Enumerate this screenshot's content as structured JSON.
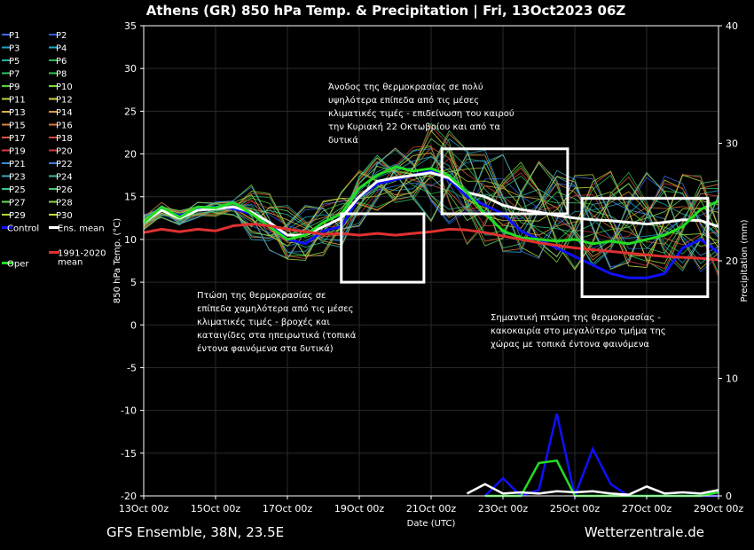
{
  "chart_data": {
    "type": "line",
    "title": "Athens  (GR)  850 hPa Temp. & Precipitation | Fri, 13Oct2023 06Z",
    "xlabel": "Date (UTC)",
    "ylabel": "850 hPa Temp. (°C)",
    "y2label": "Precipitation (mm)",
    "x_ticks": [
      "13Oct 00z",
      "15Oct 00z",
      "17Oct 00z",
      "19Oct 00z",
      "21Oct 00z",
      "23Oct 00z",
      "25Oct 00z",
      "27Oct 00z",
      "29Oct 00z"
    ],
    "x_range_days": [
      0,
      16
    ],
    "ylim": [
      -20,
      35
    ],
    "y_ticks": [
      35,
      30,
      25,
      20,
      15,
      10,
      5,
      0,
      -5,
      -10,
      -15,
      -20
    ],
    "y2lim": [
      0,
      40
    ],
    "y2_ticks": [
      40,
      30,
      20,
      10,
      0
    ],
    "grid": true,
    "legend": {
      "placement": "left outside",
      "members": [
        "P1",
        "P2",
        "P3",
        "P4",
        "P5",
        "P6",
        "P7",
        "P8",
        "P9",
        "P10",
        "P11",
        "P12",
        "P13",
        "P14",
        "P15",
        "P16",
        "P17",
        "P18",
        "P19",
        "P20",
        "P21",
        "P22",
        "P23",
        "P24",
        "P25",
        "P26",
        "P27",
        "P28",
        "P29",
        "P30"
      ],
      "member_colors": [
        "#3a6ee8",
        "#2d5ae0",
        "#1fa0c8",
        "#1aa8d0",
        "#1fb3a3",
        "#22b84a",
        "#2ec468",
        "#34c24a",
        "#4fd23a",
        "#7ad83a",
        "#b6d43a",
        "#d8d03a",
        "#d8b03a",
        "#d89a3a",
        "#d8843a",
        "#d8703a",
        "#d85a3a",
        "#d8463a",
        "#d83a4a",
        "#c83a3a",
        "#3a8ed8",
        "#3a7ad8",
        "#3aa8b8",
        "#3ab8a0",
        "#3ac88a",
        "#4ac870",
        "#6ad85a",
        "#8ad84a",
        "#a8d83a",
        "#c8d83a"
      ],
      "control": "Control",
      "ens_mean": "Ens. mean",
      "oper": "Oper",
      "climate": "1991-2020\nmean"
    },
    "series": [
      {
        "name": "Control",
        "color": "#1010ff",
        "days": [
          0,
          0.5,
          1,
          1.5,
          2,
          2.5,
          3,
          3.5,
          4,
          4.5,
          5,
          5.5,
          6,
          6.5,
          7,
          7.5,
          8,
          8.5,
          9,
          9.5,
          10,
          10.5,
          11,
          11.5,
          12,
          12.5,
          13,
          13.5,
          14,
          14.5,
          15,
          15.5,
          16
        ],
        "values": [
          12,
          13.5,
          12.8,
          13.5,
          13.8,
          13.6,
          13,
          12,
          10,
          9.5,
          11,
          11.5,
          15,
          16.5,
          17,
          17.5,
          18,
          17,
          15,
          14,
          13,
          11,
          10,
          9,
          8,
          7,
          6,
          5.5,
          5.5,
          6,
          9,
          10,
          8.5
        ]
      },
      {
        "name": "Ens. mean",
        "color": "#ffffff",
        "days": [
          0,
          0.5,
          1,
          1.5,
          2,
          2.5,
          3,
          3.5,
          4,
          4.5,
          5,
          5.5,
          6,
          6.5,
          7,
          7.5,
          8,
          8.5,
          9,
          9.5,
          10,
          10.5,
          11,
          11.5,
          12,
          12.5,
          13,
          13.5,
          14,
          14.5,
          15,
          15.5,
          16
        ],
        "values": [
          12,
          13.4,
          12.5,
          13.4,
          13.6,
          13.8,
          13.2,
          12,
          10.5,
          10.5,
          11.5,
          12.5,
          15,
          16.8,
          17.2,
          17.5,
          17.8,
          17.2,
          15.5,
          15,
          14,
          13.5,
          13.2,
          12.8,
          12.5,
          12.3,
          12.2,
          12,
          11.8,
          12,
          12.3,
          12.2,
          11.5
        ]
      },
      {
        "name": "Oper",
        "color": "#22dd22",
        "days": [
          0,
          0.5,
          1,
          1.5,
          2,
          2.5,
          3,
          3.5,
          4,
          4.5,
          5,
          5.5,
          6,
          6.5,
          7,
          7.5,
          8,
          8.5,
          9,
          9.5,
          10,
          10.5,
          11,
          11.5,
          12,
          12.5,
          13,
          13.5,
          14,
          14.5,
          15,
          15.5,
          16
        ],
        "values": [
          12,
          13.8,
          12.6,
          13.8,
          13.7,
          14.3,
          13,
          11.5,
          10,
          10.5,
          12,
          13,
          16,
          17.5,
          18.5,
          18,
          18.3,
          17.5,
          15.5,
          13,
          11,
          10.2,
          10,
          9.8,
          10,
          9.5,
          9.8,
          9.5,
          10,
          10.5,
          11.5,
          13.5,
          14.5
        ]
      },
      {
        "name": "1991-2020\nmean",
        "color": "#e03030",
        "days": [
          0,
          0.5,
          1,
          1.5,
          2,
          2.5,
          3,
          3.5,
          4,
          4.5,
          5,
          5.5,
          6,
          6.5,
          7,
          7.5,
          8,
          8.5,
          9,
          9.5,
          10,
          10.5,
          11,
          11.5,
          12,
          12.5,
          13,
          13.5,
          14,
          14.5,
          15,
          15.5,
          16
        ],
        "values": [
          10.8,
          11.2,
          10.9,
          11.2,
          11,
          11.6,
          11.8,
          11.6,
          11.2,
          10.9,
          10.6,
          10.7,
          10.5,
          10.7,
          10.5,
          10.7,
          10.9,
          11.2,
          11.1,
          10.8,
          10.4,
          10,
          9.6,
          9.3,
          9,
          8.8,
          8.6,
          8.4,
          8.2,
          8,
          7.9,
          7.8,
          7.6
        ]
      }
    ],
    "precip_series": [
      {
        "name": "Control",
        "color": "#1010ff",
        "days": [
          9.5,
          10,
          10.5,
          11,
          11.5,
          12,
          12.5,
          13,
          13.5,
          14,
          14.5,
          15,
          15.5,
          16
        ],
        "values": [
          0,
          1.5,
          0,
          0.5,
          7,
          0,
          4,
          1,
          0,
          0,
          0,
          0,
          0,
          0
        ]
      },
      {
        "name": "Oper",
        "color": "#22dd22",
        "days": [
          9.5,
          10,
          10.5,
          11,
          11.5,
          12,
          12.5,
          13,
          13.5,
          14,
          14.5,
          15,
          15.5,
          16
        ],
        "values": [
          0,
          0,
          0,
          2.8,
          3,
          0,
          0,
          0,
          0,
          0,
          0,
          0,
          0,
          0.3
        ]
      },
      {
        "name": "Ens. mean",
        "color": "#ffffff",
        "days": [
          9,
          9.5,
          10,
          10.5,
          11,
          11.5,
          12,
          12.5,
          13,
          13.5,
          14,
          14.5,
          15,
          15.5,
          16
        ],
        "values": [
          0.2,
          1,
          0.2,
          0.3,
          0.2,
          0.4,
          0.3,
          0.4,
          0.2,
          0.1,
          0.8,
          0.2,
          0.3,
          0.2,
          0.5
        ]
      }
    ],
    "annotations": [
      {
        "text": "Άνοδος της θερμοκρασίας σε πολύ\nυψηλότερα επίπεδα από τις μέσες\nκλιματικές τιμές - επιδείνωση του καιρού\nτην Κυριακή 22 Οκτωβρίου και από τα\nδυτικά"
      },
      {
        "text": "Πτώση της θερμοκρασίας σε\nεπίπεδα χαμηλότερα από τις μέσες\nκλιματικές τιμές - βροχές και\nκαταιγίδες στα ηπειρωτικά (τοπικά\nέντονα φαινόμενα στα δυτικά)"
      },
      {
        "text": "Σημαντική πτώση της θερμοκρασίας -\nκακοκαιρία στο μεγαλύτερο τμήμα της\nχώρας με τοπικά έντονα φαινόμενα"
      }
    ],
    "highlight_boxes_days": [
      {
        "x": [
          5.5,
          7.8
        ],
        "y": [
          5,
          13
        ]
      },
      {
        "x": [
          8.3,
          11.8
        ],
        "y": [
          13,
          20.6
        ]
      },
      {
        "x": [
          12.2,
          15.7
        ],
        "y": [
          3.3,
          14.8
        ]
      }
    ]
  },
  "footer": {
    "left": "GFS Ensemble, 38N, 23.5E",
    "right": "Wetterzentrale.de"
  }
}
